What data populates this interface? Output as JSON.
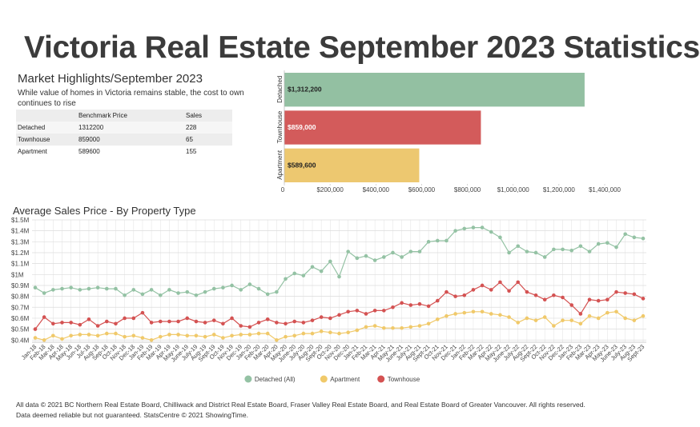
{
  "header": {
    "title": "Victoria Real Estate September 2023 Statistics"
  },
  "highlights": {
    "heading": "Market Highlights/September 2023",
    "description": "While value of homes in Victoria remains stable, the cost to own continues to rise"
  },
  "table": {
    "columns": [
      "Benchmark Price",
      "Sales"
    ],
    "rows": [
      {
        "label": "Detached",
        "values": [
          1312200,
          228
        ]
      },
      {
        "label": "Townhouse",
        "values": [
          859000,
          65
        ]
      },
      {
        "label": "Apartment",
        "values": [
          589600,
          155
        ]
      }
    ]
  },
  "chart_data": [
    {
      "type": "bar",
      "orientation": "horizontal",
      "categories": [
        "Detached",
        "Townhouse",
        "Apartment"
      ],
      "values": [
        1312200,
        859000,
        589600
      ],
      "value_labels": [
        "$1,312,200",
        "$859,000",
        "$589,600"
      ],
      "colors": [
        "#93c0a2",
        "#d35b5b",
        "#edc870"
      ],
      "xlim": [
        0,
        1400000
      ],
      "xticks": [
        0,
        {
          "value": 200000,
          "label": "$200,000"
        },
        {
          "value": 400000,
          "label": "$400,000"
        },
        {
          "value": 600000,
          "label": "$600,000"
        },
        {
          "value": 800000,
          "label": "$800,000"
        },
        {
          "value": 1000000,
          "label": "$1,000,000"
        },
        {
          "value": 1200000,
          "label": "$1,200,000"
        },
        {
          "value": 1400000,
          "label": "$1,400,000"
        }
      ],
      "grid": false
    },
    {
      "type": "line",
      "title": "Average Sales Price - By Property Type",
      "categories": [
        "Jan-18",
        "Feb-18",
        "Mar-18",
        "Apr-18",
        "May-18",
        "Jun-18",
        "Jul-18",
        "Aug-18",
        "Sep-18",
        "Oct-18",
        "Nov-18",
        "Dec-18",
        "Jan-19",
        "Feb-19",
        "Mar-19",
        "Apr-19",
        "May-19",
        "June-19",
        "July-19",
        "Aug-19",
        "Sept-19",
        "Oct-19",
        "Nov-19",
        "Dec-19",
        "Jan-20",
        "Feb-20",
        "Mar-20",
        "Apr-20",
        "May-20",
        "June-20",
        "July-20",
        "Aug-20",
        "Sept-20",
        "Oct-20",
        "Nov-20",
        "Dec-20",
        "Jan-21",
        "Feb-21",
        "Mar-21",
        "Apr-21",
        "May-21",
        "June-21",
        "July-21",
        "Aug-21",
        "Sept-21",
        "Oct-21",
        "Nov-21",
        "Dec-21",
        "Jan-22",
        "Feb-22",
        "Mar-22",
        "Apr-22",
        "May-22",
        "June-22",
        "July-22",
        "Aug-22",
        "Sept-22",
        "Oct-22",
        "Nov-22",
        "Dec-22",
        "Jan-23",
        "Feb-23",
        "Mar-23",
        "Apr-23",
        "May-23",
        "June-23",
        "July-23",
        "Aug-23",
        "Sept-23"
      ],
      "series": [
        {
          "name": "Detached (All)",
          "color": "#94c2a4",
          "values": [
            0.88,
            0.83,
            0.86,
            0.87,
            0.88,
            0.86,
            0.87,
            0.88,
            0.87,
            0.87,
            0.81,
            0.86,
            0.82,
            0.86,
            0.81,
            0.86,
            0.83,
            0.84,
            0.81,
            0.84,
            0.87,
            0.88,
            0.9,
            0.86,
            0.91,
            0.87,
            0.82,
            0.84,
            0.96,
            1.01,
            0.99,
            1.07,
            1.03,
            1.12,
            0.98,
            1.21,
            1.15,
            1.17,
            1.13,
            1.16,
            1.2,
            1.16,
            1.21,
            1.21,
            1.3,
            1.31,
            1.31,
            1.4,
            1.42,
            1.43,
            1.43,
            1.39,
            1.34,
            1.2,
            1.26,
            1.21,
            1.2,
            1.16,
            1.23,
            1.23,
            1.22,
            1.26,
            1.21,
            1.28,
            1.29,
            1.25,
            1.37,
            1.34,
            1.33
          ]
        },
        {
          "name": "Apartment",
          "color": "#f0c96a",
          "values": [
            0.42,
            0.4,
            0.44,
            0.41,
            0.44,
            0.45,
            0.45,
            0.44,
            0.46,
            0.46,
            0.43,
            0.44,
            0.42,
            0.4,
            0.43,
            0.45,
            0.45,
            0.44,
            0.44,
            0.43,
            0.45,
            0.42,
            0.44,
            0.45,
            0.45,
            0.46,
            0.46,
            0.4,
            0.43,
            0.44,
            0.46,
            0.46,
            0.48,
            0.47,
            0.46,
            0.47,
            0.49,
            0.52,
            0.53,
            0.51,
            0.51,
            0.51,
            0.52,
            0.53,
            0.55,
            0.59,
            0.62,
            0.64,
            0.65,
            0.66,
            0.66,
            0.64,
            0.63,
            0.61,
            0.56,
            0.6,
            0.58,
            0.61,
            0.53,
            0.58,
            0.58,
            0.55,
            0.62,
            0.6,
            0.65,
            0.66,
            0.6,
            0.58,
            0.62
          ]
        },
        {
          "name": "Townhouse",
          "color": "#d45252",
          "values": [
            0.5,
            0.61,
            0.55,
            0.56,
            0.56,
            0.54,
            0.59,
            0.53,
            0.57,
            0.55,
            0.6,
            0.6,
            0.65,
            0.56,
            0.57,
            0.57,
            0.57,
            0.6,
            0.57,
            0.56,
            0.58,
            0.55,
            0.6,
            0.53,
            0.52,
            0.56,
            0.59,
            0.56,
            0.55,
            0.57,
            0.56,
            0.58,
            0.61,
            0.6,
            0.63,
            0.66,
            0.67,
            0.64,
            0.67,
            0.67,
            0.7,
            0.74,
            0.72,
            0.73,
            0.71,
            0.76,
            0.84,
            0.8,
            0.81,
            0.86,
            0.9,
            0.86,
            0.93,
            0.85,
            0.93,
            0.84,
            0.81,
            0.77,
            0.81,
            0.79,
            0.72,
            0.64,
            0.77,
            0.76,
            0.77,
            0.84,
            0.83,
            0.82,
            0.78
          ]
        }
      ],
      "ylim": [
        0.38,
        1.5
      ],
      "yticks": [
        {
          "value": 0.4,
          "label": "$0.4M"
        },
        {
          "value": 0.5,
          "label": "$0.5M"
        },
        {
          "value": 0.6,
          "label": "$0.6M"
        },
        {
          "value": 0.7,
          "label": "$0.7M"
        },
        {
          "value": 0.8,
          "label": "$0.8M"
        },
        {
          "value": 0.9,
          "label": "$0.9M"
        },
        {
          "value": 1.0,
          "label": "$1M"
        },
        {
          "value": 1.1,
          "label": "$1.1M"
        },
        {
          "value": 1.2,
          "label": "$1.2M"
        },
        {
          "value": 1.3,
          "label": "$1.3M"
        },
        {
          "value": 1.4,
          "label": "$1.4M"
        },
        {
          "value": 1.5,
          "label": "$1.5M"
        }
      ],
      "grid": true,
      "legend": "bottom"
    }
  ],
  "footer": [
    "All data © 2021 BC Northern Real Estate Board, Chilliwack and District Real Estate Board, Fraser Valley Real Estate Board, and Real Estate Board of Greater Vancouver. All rights reserved.",
    "Data deemed reliable but not guaranteed. StatsCentre © 2021 ShowingTime."
  ]
}
